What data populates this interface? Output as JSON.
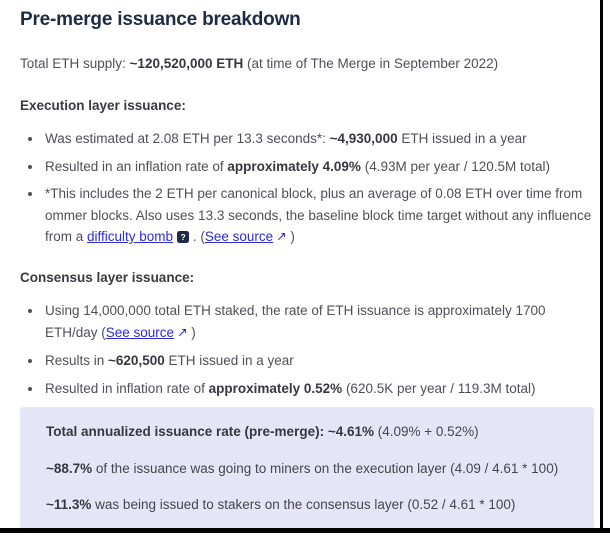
{
  "title": "Pre-merge issuance breakdown",
  "intro": {
    "s0": "Total ETH supply: ",
    "s1": "~120,520,000 ETH",
    "s2": " (at time of The Merge in September 2022)"
  },
  "execution": {
    "heading": "Execution layer issuance:",
    "b1": {
      "s0": "Was estimated at 2.08 ETH per 13.3 seconds*: ",
      "s1": "~4,930,000",
      "s2": " ETH issued in a year"
    },
    "b2": {
      "s0": "Resulted in an inflation rate of ",
      "s1": "approximately 4.09%",
      "s2": " (4.93M per year / 120.5M total)"
    },
    "b3": {
      "s0": "*This includes the 2 ETH per canonical block, plus an average of 0.08 ETH over time from ommer blocks. Also uses 13.3 seconds, the baseline block time target without any influence from a ",
      "link1": "difficulty bomb",
      "icon": "?",
      "s1": " . (",
      "link2": "See source",
      "arrow": "↗",
      "s2": " )"
    }
  },
  "consensus": {
    "heading": "Consensus layer issuance:",
    "b1": {
      "s0": "Using 14,000,000 total ETH staked, the rate of ETH issuance is approximately 1700 ETH/day (",
      "link": "See source",
      "arrow": "↗",
      "s1": " )"
    },
    "b2": {
      "s0": "Results in ",
      "s1": "~620,500",
      "s2": " ETH issued in a year"
    },
    "b3": {
      "s0": "Resulted in inflation rate of ",
      "s1": "approximately 0.52%",
      "s2": " (620.5K per year / 119.3M total)"
    }
  },
  "summary": {
    "p1": {
      "bold": "Total annualized issuance rate (pre-merge): ~4.61%",
      "rest": " (4.09% + 0.52%)"
    },
    "p2": {
      "bold": "~88.7%",
      "rest": " of the issuance was going to miners on the execution layer (4.09 / 4.61 * 100)"
    },
    "p3": {
      "bold": "~11.3%",
      "rest": " was being issued to stakers on the consensus layer (0.52 / 4.61 * 100)"
    }
  },
  "colors": {
    "link_blue": "#2c2cd4",
    "summary_background": "#e5e5f8",
    "heading_navy": "#1f2b44",
    "help_icon_background": "#1e2a45"
  }
}
